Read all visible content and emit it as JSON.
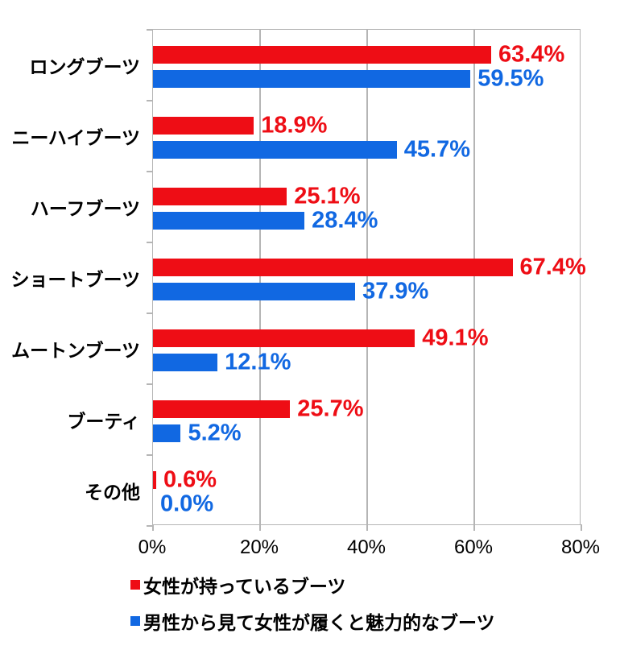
{
  "chart_data": {
    "type": "bar",
    "orientation": "horizontal",
    "title": "",
    "categories": [
      "ロングブーツ",
      "ニーハイブーツ",
      "ハーフブーツ",
      "ショートブーツ",
      "ムートンブーツ",
      "ブーティ",
      "その他"
    ],
    "series": [
      {
        "name": "女性が持っているブーツ",
        "color": "#ee0d15",
        "values": [
          63.4,
          18.9,
          25.1,
          67.4,
          49.1,
          25.7,
          0.6
        ],
        "labels": [
          "63.4%",
          "18.9%",
          "25.1%",
          "67.4%",
          "49.1%",
          "25.7%",
          "0.6%"
        ]
      },
      {
        "name": "男性から見て女性が履くと魅力的なブーツ",
        "color": "#1168e2",
        "values": [
          59.5,
          45.7,
          28.4,
          37.9,
          12.1,
          5.2,
          0.0
        ],
        "labels": [
          "59.5%",
          "45.7%",
          "28.4%",
          "37.9%",
          "12.1%",
          "5.2%",
          "0.0%"
        ]
      }
    ],
    "x_axis": {
      "ticks": [
        "0%",
        "20%",
        "40%",
        "60%",
        "80%"
      ],
      "min": 0,
      "max": 80
    },
    "grid": true,
    "legend_position": "bottom-left",
    "colors": {
      "gridline": "#b5b5b5",
      "background": "#ffffff",
      "text": "#000000"
    }
  }
}
